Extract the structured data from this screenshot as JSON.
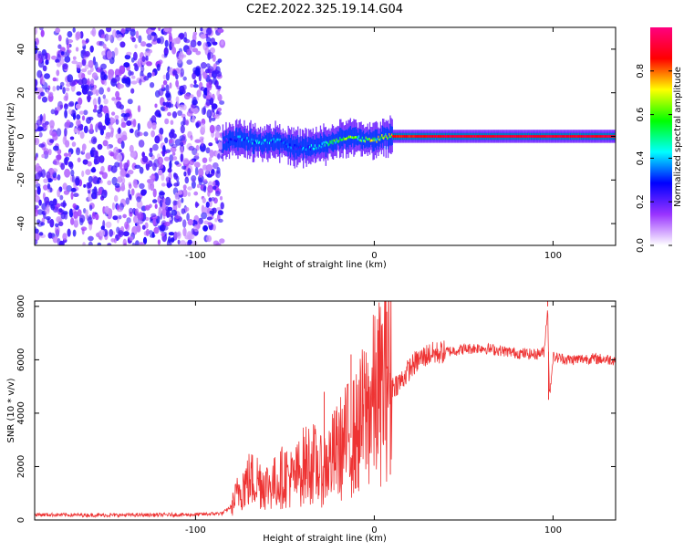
{
  "title": "C2E2.2022.325.19.14.G04",
  "chart_data": [
    {
      "type": "heatmap",
      "xlabel": "Height of straight line (km)",
      "ylabel": "Frequency (Hz)",
      "xlim": [
        -190,
        135
      ],
      "ylim": [
        -50,
        50
      ],
      "x_ticks": [
        -100,
        0,
        100
      ],
      "y_ticks": [
        40,
        20,
        0,
        -20,
        -40
      ],
      "x_tick_labels": [
        "-100",
        "0",
        "100"
      ],
      "y_tick_labels": [
        "40",
        "20",
        "0",
        "-20",
        "-40"
      ],
      "colorbar": {
        "label": "Normalized spectral amplitude",
        "range": [
          0,
          1
        ],
        "ticks": [
          0.0,
          0.2,
          0.4,
          0.6,
          0.8
        ],
        "tick_labels": [
          "0.0",
          "0.2",
          "0.4",
          "0.6",
          "0.8"
        ],
        "colors": [
          "#ffffff",
          "#9933ff",
          "#0000ff",
          "#00ffff",
          "#00ff00",
          "#ffff00",
          "#ff0000",
          "#ff0080"
        ]
      },
      "noise_region": {
        "x": [
          -190,
          -85
        ],
        "amplitude": 0.2
      },
      "signal_track": {
        "x": [
          -85,
          -75,
          -65,
          -55,
          -45,
          -35,
          -25,
          -15,
          -10,
          0,
          5,
          10,
          20,
          40,
          60,
          80,
          92,
          100,
          120,
          135
        ],
        "frequency": [
          -2,
          -1,
          -3,
          -2,
          -5,
          -5,
          -3,
          0,
          -1,
          -2,
          0,
          0,
          0,
          0,
          0,
          0,
          0,
          0,
          0,
          0
        ],
        "amplitude": [
          0.25,
          0.45,
          0.45,
          0.5,
          0.35,
          0.45,
          0.6,
          0.7,
          0.7,
          0.75,
          0.8,
          0.85,
          0.85,
          0.9,
          0.9,
          0.9,
          0.9,
          0.9,
          0.9,
          0.9
        ]
      },
      "grid": false
    },
    {
      "type": "line",
      "xlabel": "Height of straight line (km)",
      "ylabel": "SNR (10 * v/v)",
      "xlim": [
        -190,
        135
      ],
      "ylim": [
        0,
        8200
      ],
      "x_ticks": [
        -100,
        0,
        100
      ],
      "y_ticks": [
        0,
        2000,
        4000,
        6000,
        8000
      ],
      "x_tick_labels": [
        "-100",
        "0",
        "100"
      ],
      "y_tick_labels": [
        "0",
        "2000",
        "4000",
        "6000",
        "8000"
      ],
      "series": [
        {
          "color": "#ee3333",
          "x": [
            -190,
            -150,
            -100,
            -85,
            -80,
            -75,
            -70,
            -65,
            -60,
            -55,
            -50,
            -45,
            -40,
            -35,
            -30,
            -25,
            -20,
            -15,
            -10,
            -5,
            0,
            5,
            8,
            10,
            15,
            20,
            25,
            30,
            40,
            50,
            60,
            70,
            80,
            90,
            95,
            97,
            98,
            100,
            110,
            120,
            135
          ],
          "y": [
            200,
            180,
            200,
            250,
            500,
            1200,
            1500,
            1500,
            1300,
            1400,
            1700,
            1500,
            2000,
            2200,
            1800,
            2200,
            2600,
            3000,
            3200,
            4000,
            4500,
            5000,
            6000,
            5000,
            5200,
            5700,
            6000,
            6200,
            6300,
            6400,
            6450,
            6350,
            6250,
            6200,
            6300,
            8000,
            4600,
            6100,
            6000,
            6050,
            6000
          ]
        }
      ],
      "spikes": [
        {
          "x": 7,
          "y": 7800
        },
        {
          "x": 97,
          "y": 8200
        },
        {
          "x": -28,
          "y": 4800
        },
        {
          "x": -13,
          "y": 6200
        },
        {
          "x": 9,
          "y": 1700
        },
        {
          "x": 97.5,
          "y": 4500
        }
      ],
      "grid": false
    }
  ]
}
